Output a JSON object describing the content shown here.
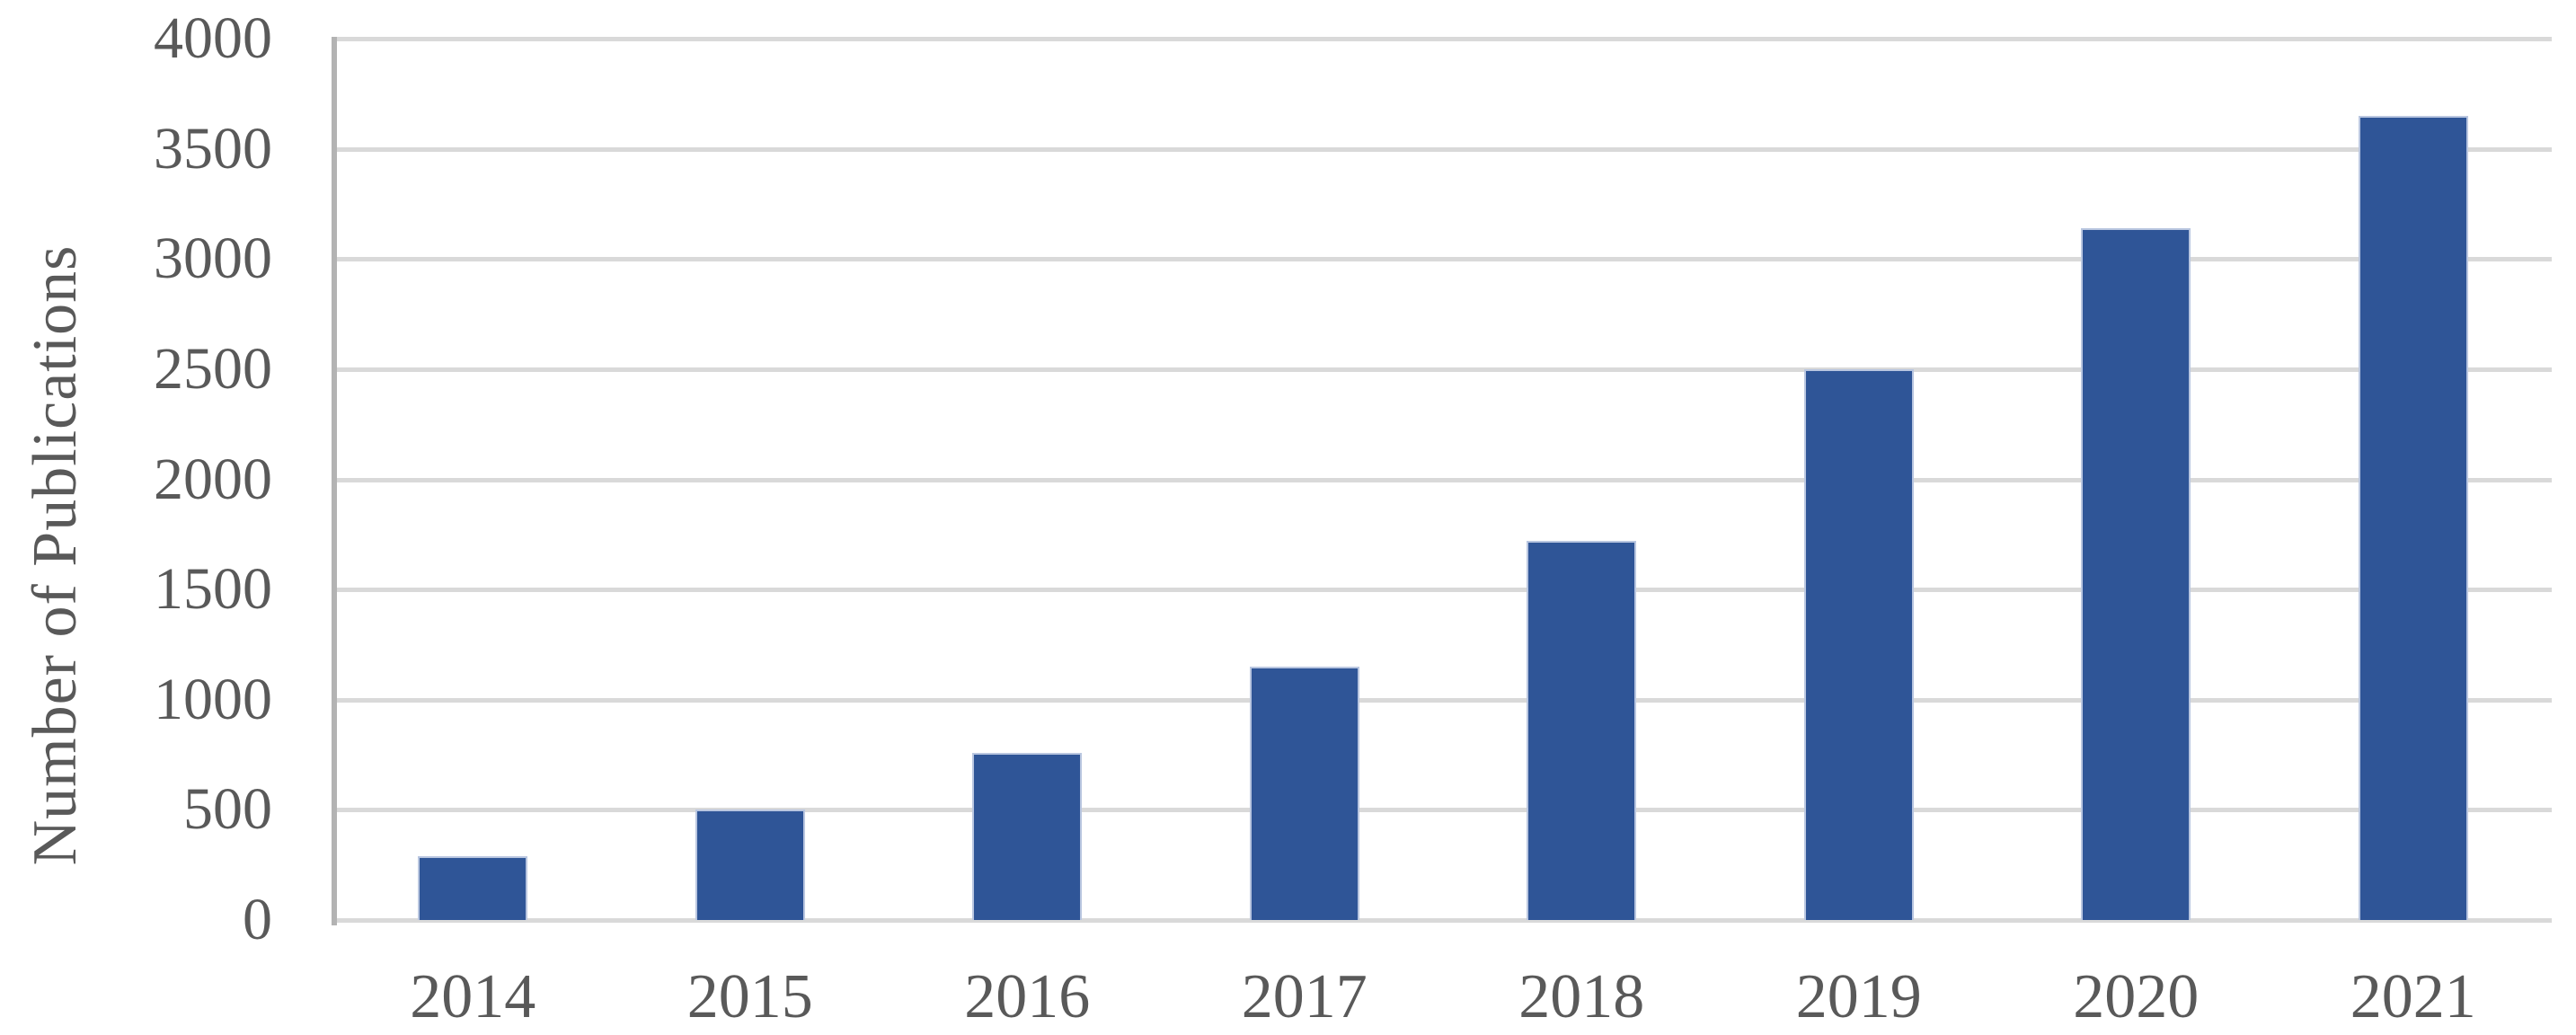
{
  "chart_data": {
    "type": "bar",
    "title": "",
    "ylabel": "Number of Publications",
    "xlabel": "",
    "categories": [
      "2014",
      "2015",
      "2016",
      "2017",
      "2018",
      "2019",
      "2020",
      "2021"
    ],
    "values": [
      290,
      500,
      760,
      1150,
      1720,
      2500,
      3140,
      3650
    ],
    "series_name": "Number of Publications",
    "ylim": [
      0,
      4000
    ],
    "ytick_interval": 500,
    "ytick_labels": [
      "0",
      "500",
      "1000",
      "1500",
      "2000",
      "2500",
      "3000",
      "3500",
      "4000"
    ],
    "grid": "horizontal gridlines on, every 500",
    "legend": "none",
    "colors": {
      "bar_fill": "#2F5597",
      "bar_edge": "#B9C6E0",
      "gridline": "#D9D9D9",
      "axis_line": "#B3B3B3",
      "label_text": "#595959",
      "background": "#FFFFFF"
    }
  }
}
